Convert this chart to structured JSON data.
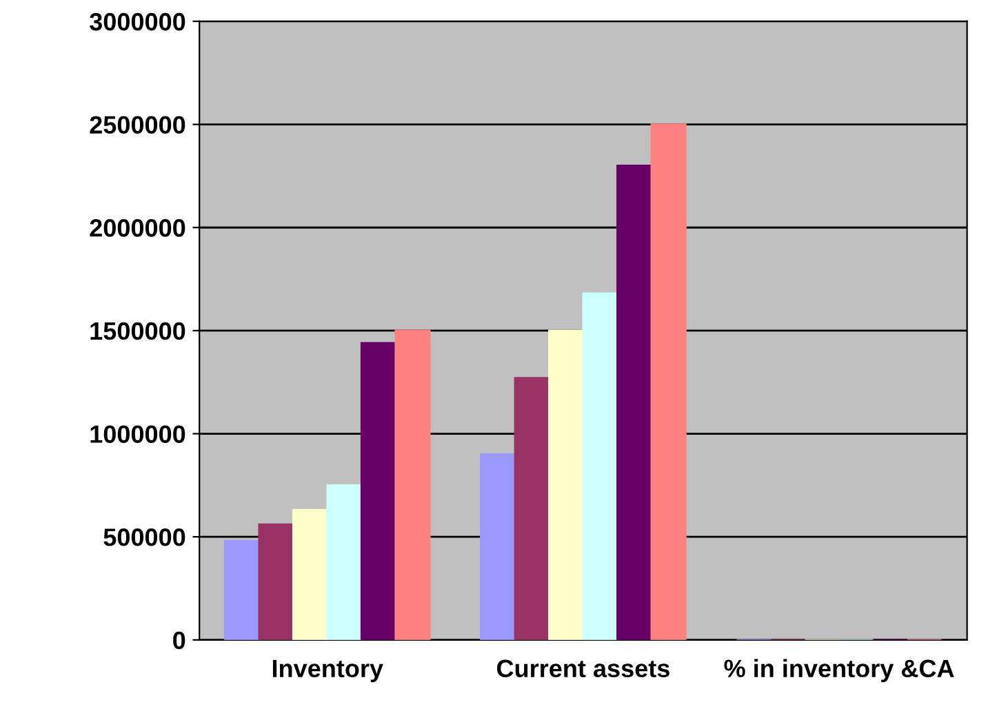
{
  "chart_data": {
    "type": "bar",
    "categories": [
      "Inventory",
      "Current assets",
      "% in inventory &CA"
    ],
    "series": [
      {
        "color": "#9999ff",
        "values": [
          480000,
          900000,
          0
        ]
      },
      {
        "color": "#993366",
        "values": [
          560000,
          1270000,
          0
        ]
      },
      {
        "color": "#ffffcc",
        "values": [
          630000,
          1500000,
          0
        ]
      },
      {
        "color": "#ccffff",
        "values": [
          750000,
          1680000,
          0
        ]
      },
      {
        "color": "#660066",
        "values": [
          1440000,
          2300000,
          0
        ]
      },
      {
        "color": "#ff8080",
        "values": [
          1500000,
          2500000,
          0
        ]
      }
    ],
    "ylim": [
      0,
      3000000
    ],
    "yticks": [
      0,
      500000,
      1000000,
      1500000,
      2000000,
      2500000,
      3000000
    ],
    "grid": "y",
    "legend": false
  }
}
